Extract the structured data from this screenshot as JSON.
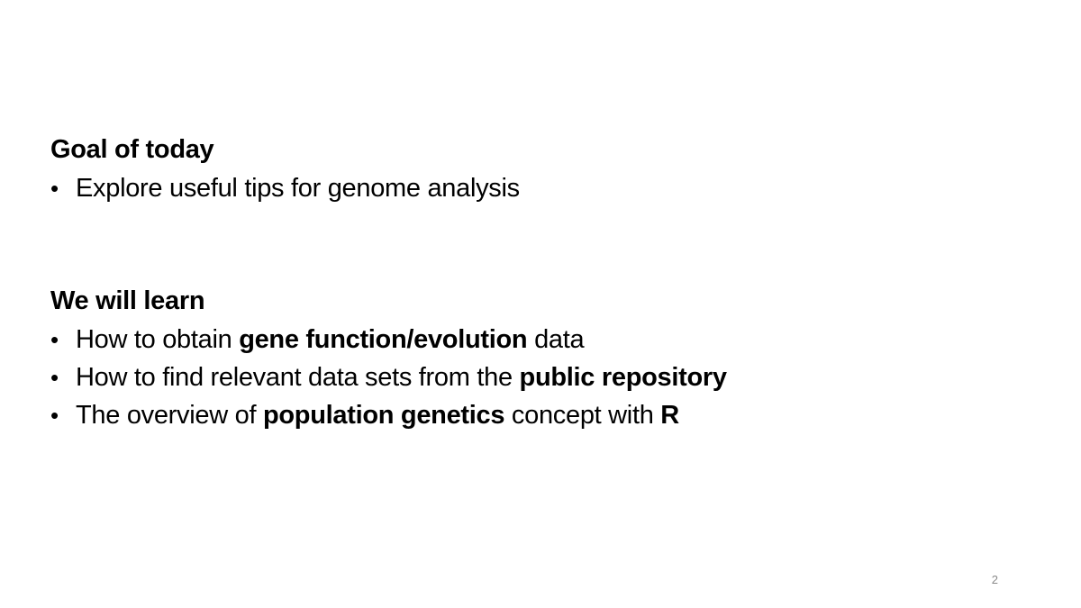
{
  "goal": {
    "heading": "Goal of today",
    "items": [
      {
        "parts": [
          {
            "text": "Explore useful tips for genome analysis",
            "bold": false
          }
        ]
      }
    ]
  },
  "learn": {
    "heading": "We will learn",
    "items": [
      {
        "parts": [
          {
            "text": "How to obtain ",
            "bold": false
          },
          {
            "text": "gene function/evolution",
            "bold": true
          },
          {
            "text": " data",
            "bold": false
          }
        ]
      },
      {
        "parts": [
          {
            "text": "How to find relevant data sets from the ",
            "bold": false
          },
          {
            "text": "public repository",
            "bold": true
          }
        ]
      },
      {
        "parts": [
          {
            "text": "The overview of ",
            "bold": false
          },
          {
            "text": "population genetics",
            "bold": true
          },
          {
            "text": " concept with ",
            "bold": false
          },
          {
            "text": "R",
            "bold": true
          }
        ]
      }
    ]
  },
  "bullet_glyph": "•",
  "page_number": "2"
}
